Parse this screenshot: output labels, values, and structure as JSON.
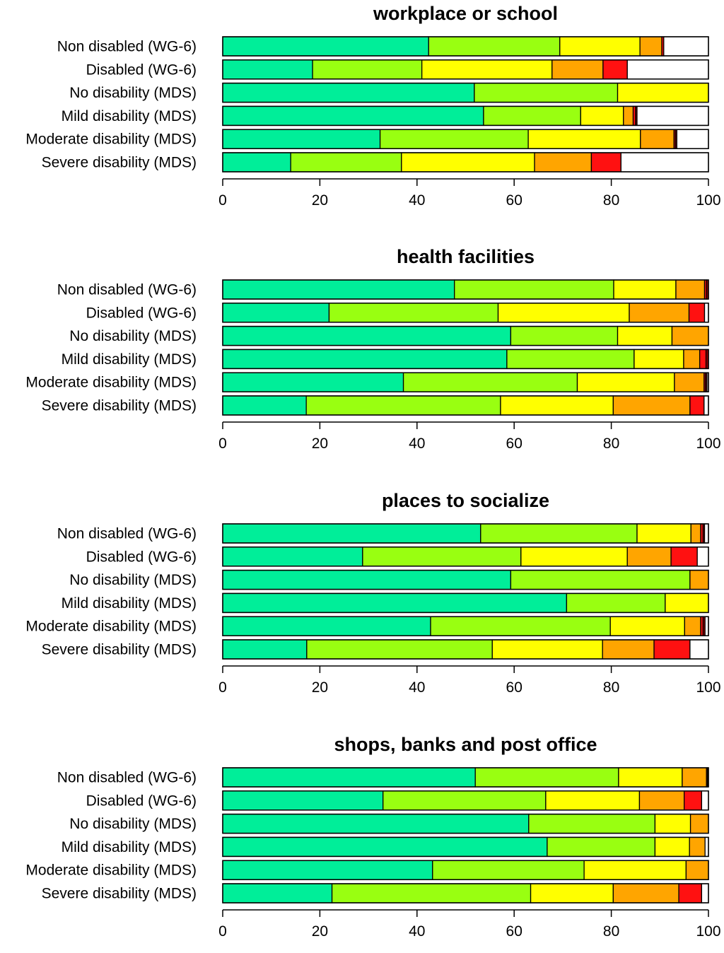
{
  "chart_data": {
    "type": "stacked-bar-horizontal",
    "segment_colors": [
      "#00EE99",
      "#99FF11",
      "#FFFF00",
      "#FFA500",
      "#FF1111",
      "#8B0000",
      "#FFFFFF"
    ],
    "xlim": [
      0,
      100
    ],
    "ticks": [
      "0",
      "20",
      "40",
      "60",
      "80",
      "100"
    ],
    "panels": [
      {
        "title": "workplace or school",
        "categories": [
          "Non disabled (WG-6)",
          "Disabled (WG-6)",
          "No disability (MDS)",
          "Mild disability (MDS)",
          "Moderate disability (MDS)",
          "Severe disability (MDS)"
        ],
        "values": [
          [
            42.4,
            27.0,
            16.5,
            4.5,
            0.4,
            0,
            9.2
          ],
          [
            18.5,
            22.5,
            26.8,
            10.5,
            5.0,
            0,
            16.7
          ],
          [
            51.8,
            29.5,
            18.7,
            0,
            0,
            0,
            0
          ],
          [
            53.7,
            20.0,
            8.8,
            2.0,
            0.5,
            0.3,
            14.7
          ],
          [
            32.4,
            30.5,
            23.1,
            6.9,
            0.3,
            0.3,
            6.5
          ],
          [
            14.0,
            22.8,
            27.4,
            11.7,
            6.1,
            0,
            18.0
          ]
        ]
      },
      {
        "title": "health facilities",
        "categories": [
          "Non disabled (WG-6)",
          "Disabled (WG-6)",
          "No disability (MDS)",
          "Mild disability (MDS)",
          "Moderate disability (MDS)",
          "Severe disability (MDS)"
        ],
        "values": [
          [
            47.7,
            32.8,
            12.8,
            5.9,
            0.4,
            0.4,
            0
          ],
          [
            21.9,
            34.8,
            27.0,
            12.3,
            3.2,
            0,
            0.8
          ],
          [
            59.3,
            22.0,
            11.2,
            7.5,
            0,
            0,
            0
          ],
          [
            58.5,
            26.2,
            10.2,
            3.3,
            1.3,
            0.5,
            0
          ],
          [
            37.2,
            35.8,
            20.0,
            6.1,
            0.3,
            0.3,
            0.3
          ],
          [
            17.2,
            40.0,
            23.2,
            15.8,
            2.9,
            0,
            0.9
          ]
        ]
      },
      {
        "title": "places to socialize",
        "categories": [
          "Non disabled (WG-6)",
          "Disabled (WG-6)",
          "No disability (MDS)",
          "Mild disability (MDS)",
          "Moderate disability (MDS)",
          "Severe disability (MDS)"
        ],
        "values": [
          [
            53.1,
            32.2,
            11.1,
            2.0,
            0.5,
            0.3,
            0.8
          ],
          [
            28.8,
            32.6,
            21.9,
            9.0,
            5.4,
            0,
            2.3
          ],
          [
            59.3,
            36.9,
            0,
            3.8,
            0,
            0,
            0
          ],
          [
            70.8,
            20.3,
            8.9,
            0,
            0,
            0,
            0
          ],
          [
            42.8,
            37.0,
            15.3,
            3.3,
            0.5,
            0.4,
            0.7
          ],
          [
            17.3,
            38.2,
            22.7,
            10.6,
            7.4,
            0,
            3.8
          ]
        ]
      },
      {
        "title": "shops, banks and post office",
        "categories": [
          "Non disabled (WG-6)",
          "Disabled (WG-6)",
          "No disability (MDS)",
          "Mild disability (MDS)",
          "Moderate disability (MDS)",
          "Severe disability (MDS)"
        ],
        "values": [
          [
            52.0,
            29.5,
            13.1,
            5.0,
            0.2,
            0.2,
            0
          ],
          [
            33.0,
            33.5,
            19.3,
            9.2,
            3.6,
            0,
            1.4
          ],
          [
            63.0,
            26.0,
            7.3,
            3.7,
            0,
            0,
            0
          ],
          [
            66.8,
            22.2,
            7.1,
            3.2,
            0,
            0,
            0.7
          ],
          [
            43.2,
            31.2,
            21.0,
            4.6,
            0,
            0,
            0
          ],
          [
            22.5,
            40.9,
            17.0,
            13.5,
            4.7,
            0,
            1.4
          ]
        ]
      }
    ]
  }
}
